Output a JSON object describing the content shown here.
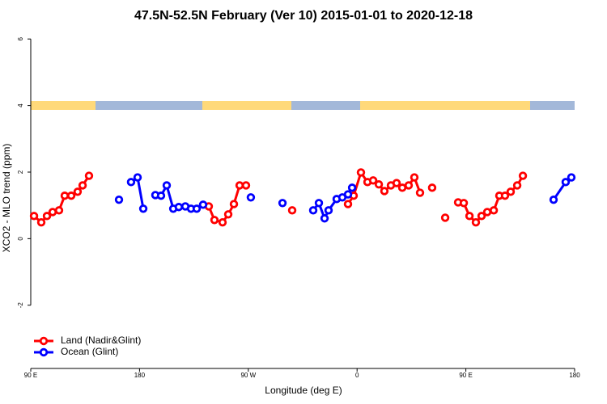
{
  "chart_data": {
    "type": "line",
    "title": "47.5N-52.5N February (Ver 10)   2015-01-01 to 2020-12-18",
    "x_label": "Longitude (deg E)",
    "y_label": "XCO2 - MLO trend (ppm)",
    "xlim": [
      90,
      540
    ],
    "xticks": [
      {
        "value": 90,
        "label": "90 E"
      },
      {
        "value": 180,
        "label": "180"
      },
      {
        "value": 270,
        "label": "90 W"
      },
      {
        "value": 360,
        "label": "0"
      },
      {
        "value": 450,
        "label": "90 E"
      },
      {
        "value": 540,
        "label": "180"
      }
    ],
    "ylim": [
      -3.9,
      6.2
    ],
    "yticks": [
      -2,
      0,
      2,
      4,
      6
    ],
    "legend": "bottom-left",
    "series": [
      {
        "name": "Land (Nadir&Glint)",
        "color": "#ff0000",
        "x": [
          92.7,
          98.7,
          103.4,
          108.1,
          113.4,
          118.1,
          123.5,
          128.8,
          132.9,
          138.2,
          null,
          237.3,
          242.0,
          248.7,
          253.4,
          258.1,
          262.8,
          268.1,
          null,
          306.3,
          null,
          352.5,
          357.2,
          363.2,
          368.6,
          373.3,
          378.0,
          382.6,
          388.0,
          392.7,
          397.4,
          402.7,
          407.4,
          412.1,
          null,
          422.1,
          null,
          432.9,
          null,
          443.6,
          448.3,
          453.0,
          458.3,
          463.0,
          467.7,
          473.1,
          477.7,
          482.4,
          487.1,
          492.5,
          497.2
        ],
        "values": [
          0.68,
          0.49,
          0.68,
          0.8,
          0.85,
          1.29,
          1.29,
          1.41,
          1.6,
          1.89,
          null,
          0.97,
          0.56,
          0.49,
          0.73,
          1.04,
          1.6,
          1.6,
          null,
          0.85,
          null,
          1.04,
          1.29,
          1.99,
          1.7,
          1.75,
          1.63,
          1.43,
          1.6,
          1.67,
          1.53,
          1.6,
          1.84,
          1.38,
          null,
          1.53,
          null,
          0.63,
          null,
          1.09,
          1.07,
          0.68,
          0.49,
          0.68,
          0.8,
          0.85,
          1.29,
          1.29,
          1.41,
          1.6,
          1.89
        ]
      },
      {
        "name": "Ocean (Glint)",
        "color": "#0000ff",
        "x": [
          163.0,
          null,
          173.0,
          178.4,
          183.1,
          null,
          193.1,
          197.8,
          202.5,
          207.9,
          212.5,
          217.9,
          222.6,
          227.3,
          232.6,
          null,
          272.1,
          null,
          298.3,
          null,
          323.7,
          328.4,
          333.1,
          336.4,
          343.1,
          347.8,
          352.5,
          355.9,
          null,
          522.6,
          532.6,
          537.3
        ],
        "values": [
          1.17,
          null,
          1.7,
          1.84,
          0.9,
          null,
          1.31,
          1.29,
          1.6,
          0.9,
          0.95,
          0.97,
          0.9,
          0.9,
          1.02,
          null,
          1.24,
          null,
          1.07,
          null,
          0.85,
          1.07,
          0.61,
          0.85,
          1.19,
          1.24,
          1.33,
          1.53,
          null,
          1.17,
          1.7,
          1.84
        ]
      }
    ]
  }
}
